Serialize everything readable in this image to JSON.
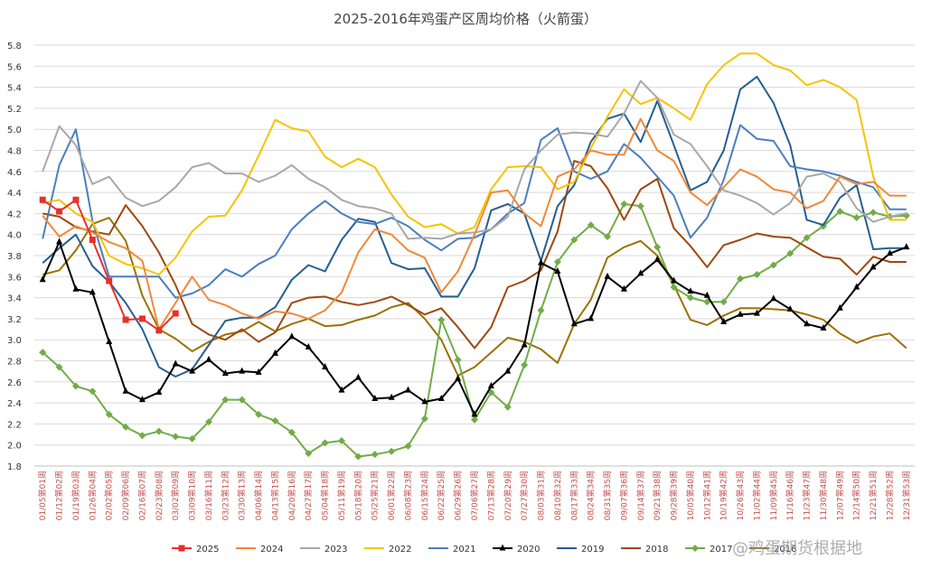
{
  "chart_data": {
    "type": "line",
    "title": "2025-2016年鸡蛋产区周均价格（火箭蛋）",
    "watermark": "@鸡蛋期货根据地",
    "grid": true,
    "legend": "bottom",
    "categories": [
      "01/05第01周",
      "01/12第02周",
      "01/19第03周",
      "01/26第04周",
      "02/02第05周",
      "02/09第06周",
      "02/16第07周",
      "02/23第08周",
      "03/02第09周",
      "03/09第10周",
      "03/16第11周",
      "03/23第12周",
      "03/30第13周",
      "04/06第14周",
      "04/13第15周",
      "04/20第16周",
      "04/27第17周",
      "05/04第18周",
      "05/11第19周",
      "05/18第20周",
      "05/25第21周",
      "06/01第22周",
      "06/08第23周",
      "06/15第24周",
      "06/22第25周",
      "06/29第26周",
      "07/06第27周",
      "07/13第28周",
      "07/20第29周",
      "07/27第30周",
      "08/03第31周",
      "08/10第32周",
      "08/17第33周",
      "08/24第34周",
      "08/31第35周",
      "09/07第36周",
      "09/14第37周",
      "09/21第38周",
      "09/28第39周",
      "10/05第40周",
      "10/12第41周",
      "10/19第42周",
      "10/26第43周",
      "11/02第44周",
      "11/09第45周",
      "11/16第46周",
      "11/23第47周",
      "11/30第48周",
      "12/07第49周",
      "12/14第50周",
      "12/21第51周",
      "12/28第52周",
      "12/31第53周"
    ],
    "ylim": [
      1.8,
      5.8
    ],
    "yticks": [
      1.8,
      {
        "value": 2,
        "label": "2.0"
      },
      2.2,
      2.4,
      2.6,
      2.8,
      {
        "value": 3,
        "label": "3.0"
      },
      3.2,
      3.4,
      3.6,
      3.8,
      {
        "value": 4,
        "label": "4.0"
      },
      4.2,
      4.4,
      4.6,
      4.8,
      {
        "value": 5,
        "label": "5.0"
      },
      5.2,
      5.4,
      5.6,
      5.8
    ],
    "series": [
      {
        "name": "2025",
        "color": "#e8302a",
        "marker": "square",
        "values": [
          4.33,
          4.22,
          4.33,
          3.95,
          3.56,
          3.19,
          3.2,
          3.09,
          3.25,
          null,
          null,
          null,
          null,
          null,
          null,
          null,
          null,
          null,
          null,
          null,
          null,
          null,
          null,
          null,
          null,
          null,
          null,
          null,
          null,
          null,
          null,
          null,
          null,
          null,
          null,
          null,
          null,
          null,
          null,
          null,
          null,
          null,
          null,
          null,
          null,
          null,
          null,
          null,
          null,
          null,
          null,
          null,
          null
        ]
      },
      {
        "name": "2024",
        "color": "#f0883a",
        "values": [
          4.18,
          3.98,
          4.08,
          4.02,
          3.93,
          3.87,
          3.75,
          3.1,
          3.35,
          3.6,
          3.38,
          3.33,
          3.25,
          3.2,
          3.27,
          3.25,
          3.2,
          3.28,
          3.45,
          3.83,
          4.05,
          4.0,
          3.85,
          3.78,
          3.45,
          3.65,
          4.0,
          4.4,
          4.42,
          4.2,
          4.08,
          4.55,
          4.62,
          4.8,
          4.76,
          4.76,
          5.1,
          4.8,
          4.7,
          4.4,
          4.28,
          4.45,
          4.62,
          4.55,
          4.43,
          4.4,
          4.25,
          4.32,
          4.55,
          4.48,
          4.5,
          4.37,
          4.37
        ]
      },
      {
        "name": "2023",
        "color": "#a8a8a8",
        "values": [
          4.6,
          5.03,
          4.85,
          4.48,
          4.55,
          4.35,
          4.27,
          4.32,
          4.45,
          4.64,
          4.68,
          4.58,
          4.58,
          4.5,
          4.56,
          4.66,
          4.53,
          4.45,
          4.33,
          4.27,
          4.25,
          4.2,
          3.96,
          3.97,
          3.96,
          4.01,
          4.02,
          4.05,
          4.17,
          4.62,
          4.8,
          4.95,
          4.97,
          4.96,
          4.93,
          5.15,
          5.46,
          5.3,
          4.95,
          4.86,
          4.65,
          4.42,
          4.37,
          4.3,
          4.19,
          4.3,
          4.55,
          4.58,
          4.5,
          4.25,
          4.12,
          4.17,
          4.2
        ]
      },
      {
        "name": "2022",
        "color": "#f5c400",
        "values": [
          4.3,
          4.33,
          4.2,
          4.12,
          3.8,
          3.72,
          3.68,
          3.62,
          3.78,
          4.03,
          4.17,
          4.18,
          4.42,
          4.75,
          5.09,
          5.01,
          4.98,
          4.74,
          4.64,
          4.72,
          4.64,
          4.38,
          4.17,
          4.07,
          4.1,
          4.01,
          4.07,
          4.43,
          4.64,
          4.65,
          4.64,
          4.43,
          4.5,
          4.82,
          5.12,
          5.38,
          5.24,
          5.3,
          5.2,
          5.09,
          5.43,
          5.61,
          5.72,
          5.72,
          5.61,
          5.56,
          5.42,
          5.47,
          5.4,
          5.28,
          4.55,
          4.14,
          4.14
        ]
      },
      {
        "name": "2021",
        "color": "#4a7ec0",
        "values": [
          3.96,
          4.66,
          5.0,
          4.13,
          3.6,
          3.6,
          3.6,
          3.6,
          3.4,
          3.44,
          3.52,
          3.67,
          3.6,
          3.72,
          3.8,
          4.05,
          4.2,
          4.32,
          4.2,
          4.12,
          4.1,
          4.16,
          4.08,
          3.95,
          3.85,
          3.96,
          3.97,
          4.05,
          4.2,
          4.3,
          4.9,
          5.01,
          4.6,
          4.53,
          4.6,
          4.86,
          4.73,
          4.55,
          4.37,
          3.97,
          4.16,
          4.52,
          5.04,
          4.91,
          4.89,
          4.65,
          4.62,
          4.6,
          4.56,
          4.5,
          4.45,
          4.24,
          4.24
        ]
      },
      {
        "name": "2020",
        "color": "#000000",
        "marker": "triangle",
        "values": [
          3.57,
          3.93,
          3.48,
          3.45,
          2.98,
          2.51,
          2.43,
          2.5,
          2.77,
          2.7,
          2.81,
          2.68,
          2.7,
          2.69,
          2.87,
          3.03,
          2.93,
          2.74,
          2.52,
          2.64,
          2.44,
          2.45,
          2.52,
          2.41,
          2.44,
          2.63,
          2.29,
          2.56,
          2.7,
          2.95,
          3.73,
          3.65,
          3.15,
          3.2,
          3.6,
          3.48,
          3.63,
          3.76,
          3.56,
          3.46,
          3.42,
          3.17,
          3.24,
          3.25,
          3.39,
          3.29,
          3.15,
          3.11,
          3.3,
          3.5,
          3.69,
          3.82,
          3.88
        ]
      },
      {
        "name": "2019",
        "color": "#255e91",
        "values": [
          3.73,
          3.87,
          4.0,
          3.7,
          3.55,
          3.35,
          3.1,
          2.74,
          2.65,
          2.72,
          2.95,
          3.18,
          3.21,
          3.21,
          3.31,
          3.57,
          3.71,
          3.65,
          3.95,
          4.15,
          4.12,
          3.73,
          3.67,
          3.68,
          3.41,
          3.41,
          3.68,
          4.23,
          4.29,
          4.2,
          3.75,
          4.27,
          4.47,
          4.88,
          5.1,
          5.15,
          4.88,
          5.27,
          4.85,
          4.42,
          4.5,
          4.8,
          5.38,
          5.5,
          5.25,
          4.85,
          4.14,
          4.09,
          4.35,
          4.47,
          3.86,
          3.87,
          3.87
        ]
      },
      {
        "name": "2018",
        "color": "#9e480e",
        "values": [
          4.2,
          4.17,
          4.07,
          4.03,
          4.0,
          4.28,
          4.08,
          3.83,
          3.52,
          3.15,
          3.05,
          3.0,
          3.1,
          2.98,
          3.07,
          3.35,
          3.4,
          3.41,
          3.36,
          3.33,
          3.36,
          3.41,
          3.33,
          3.24,
          3.3,
          3.12,
          2.92,
          3.12,
          3.5,
          3.56,
          3.66,
          4.03,
          4.7,
          4.65,
          4.44,
          4.14,
          4.43,
          4.53,
          4.06,
          3.89,
          3.69,
          3.9,
          3.95,
          4.01,
          3.98,
          3.97,
          3.88,
          3.79,
          3.77,
          3.62,
          3.79,
          3.74,
          3.74
        ]
      },
      {
        "name": "2017",
        "color": "#70ad47",
        "marker": "diamond",
        "values": [
          2.88,
          2.74,
          2.56,
          2.51,
          2.29,
          2.17,
          2.09,
          2.13,
          2.08,
          2.06,
          2.22,
          2.43,
          2.43,
          2.29,
          2.23,
          2.12,
          1.92,
          2.02,
          2.04,
          1.89,
          1.91,
          1.94,
          1.99,
          2.25,
          3.19,
          2.81,
          2.24,
          2.5,
          2.36,
          2.76,
          3.28,
          3.74,
          3.95,
          4.09,
          3.98,
          4.29,
          4.27,
          3.88,
          3.5,
          3.4,
          3.36,
          3.36,
          3.58,
          3.62,
          3.71,
          3.82,
          3.97,
          4.08,
          4.22,
          4.16,
          4.21,
          4.17,
          4.18
        ]
      },
      {
        "name": "2016",
        "color": "#997300",
        "values": [
          3.62,
          3.66,
          3.85,
          4.1,
          4.16,
          3.94,
          3.42,
          3.1,
          3.01,
          2.89,
          2.98,
          3.05,
          3.08,
          3.17,
          3.08,
          3.15,
          3.2,
          3.13,
          3.14,
          3.19,
          3.23,
          3.31,
          3.35,
          3.2,
          3.0,
          2.66,
          2.74,
          2.88,
          3.02,
          2.98,
          2.91,
          2.78,
          3.15,
          3.38,
          3.78,
          3.88,
          3.94,
          3.8,
          3.52,
          3.19,
          3.14,
          3.23,
          3.3,
          3.3,
          3.29,
          3.28,
          3.24,
          3.19,
          3.06,
          2.97,
          3.03,
          3.06,
          2.92
        ]
      }
    ]
  }
}
